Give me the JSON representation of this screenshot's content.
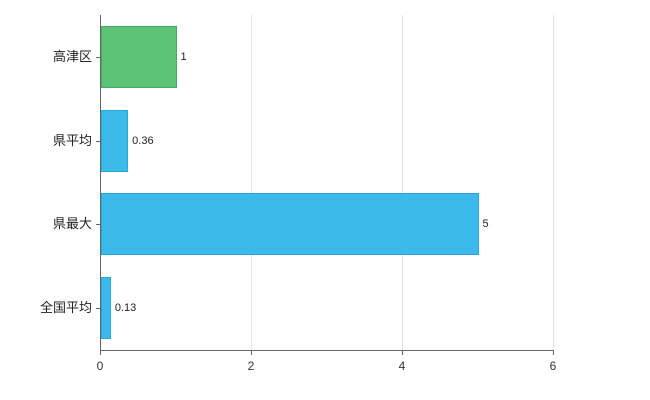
{
  "chart_data": {
    "type": "bar",
    "orientation": "horizontal",
    "title": "",
    "categories": [
      "高津区",
      "県平均",
      "県最大",
      "全国平均"
    ],
    "values": [
      1,
      0.36,
      5,
      0.13
    ],
    "value_labels": [
      "1",
      "0.36",
      "5",
      "0.13"
    ],
    "bar_colors": [
      "#5cc377",
      "#3dbaec",
      "#3dbaec",
      "#3dbaec"
    ],
    "bar_border_colors": [
      "#46ab62",
      "#28a6d9",
      "#28a6d9",
      "#28a6d9"
    ],
    "xlim": [
      0,
      6
    ],
    "x_ticks": [
      0,
      2,
      4,
      6
    ],
    "x_tick_labels": [
      "0",
      "2",
      "4",
      "6"
    ],
    "grid": true,
    "gridline_color": "#e3e3e3",
    "axis_color": "#666666",
    "background": "#ffffff",
    "legend": "none"
  }
}
